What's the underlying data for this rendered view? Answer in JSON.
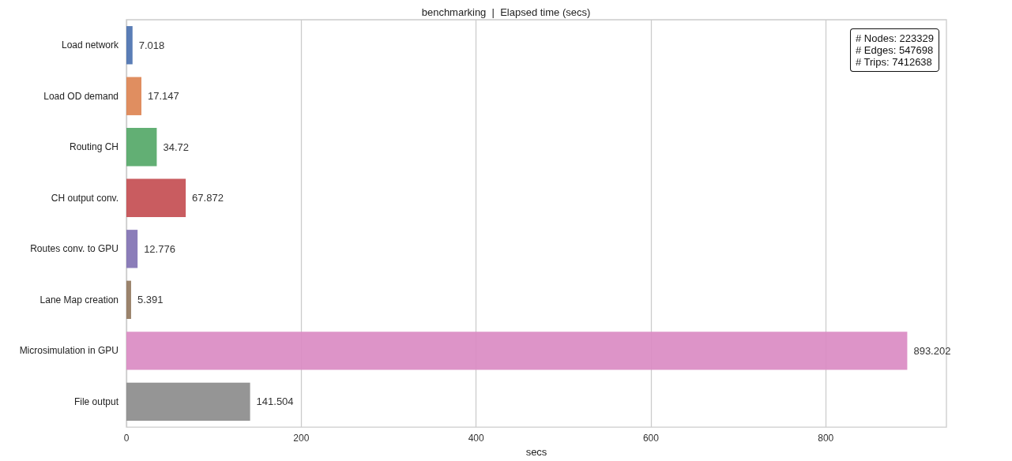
{
  "chart_data": {
    "type": "bar",
    "orientation": "horizontal",
    "title": "benchmarking  |  Elapsed time (secs)",
    "xlabel": "secs",
    "categories": [
      "Load network",
      "Load OD demand",
      "Routing CH",
      "CH output conv.",
      "Routes conv. to GPU",
      "Lane Map creation",
      "Microsimulation in GPU",
      "File output"
    ],
    "values": [
      7.018,
      17.147,
      34.72,
      67.872,
      12.776,
      5.391,
      893.202,
      141.504
    ],
    "colors": [
      "#4c72b0",
      "#dd8452",
      "#55a868",
      "#c44e52",
      "#8172b3",
      "#937860",
      "#da8bc3",
      "#8c8c8c"
    ],
    "xlim": [
      0,
      938
    ],
    "xticks": [
      0,
      200,
      400,
      600,
      800
    ],
    "grid": "x",
    "data_labels": true,
    "annotations": [
      "# Nodes: 223329\n# Edges: 547698\n# Trips: 7412638"
    ]
  }
}
